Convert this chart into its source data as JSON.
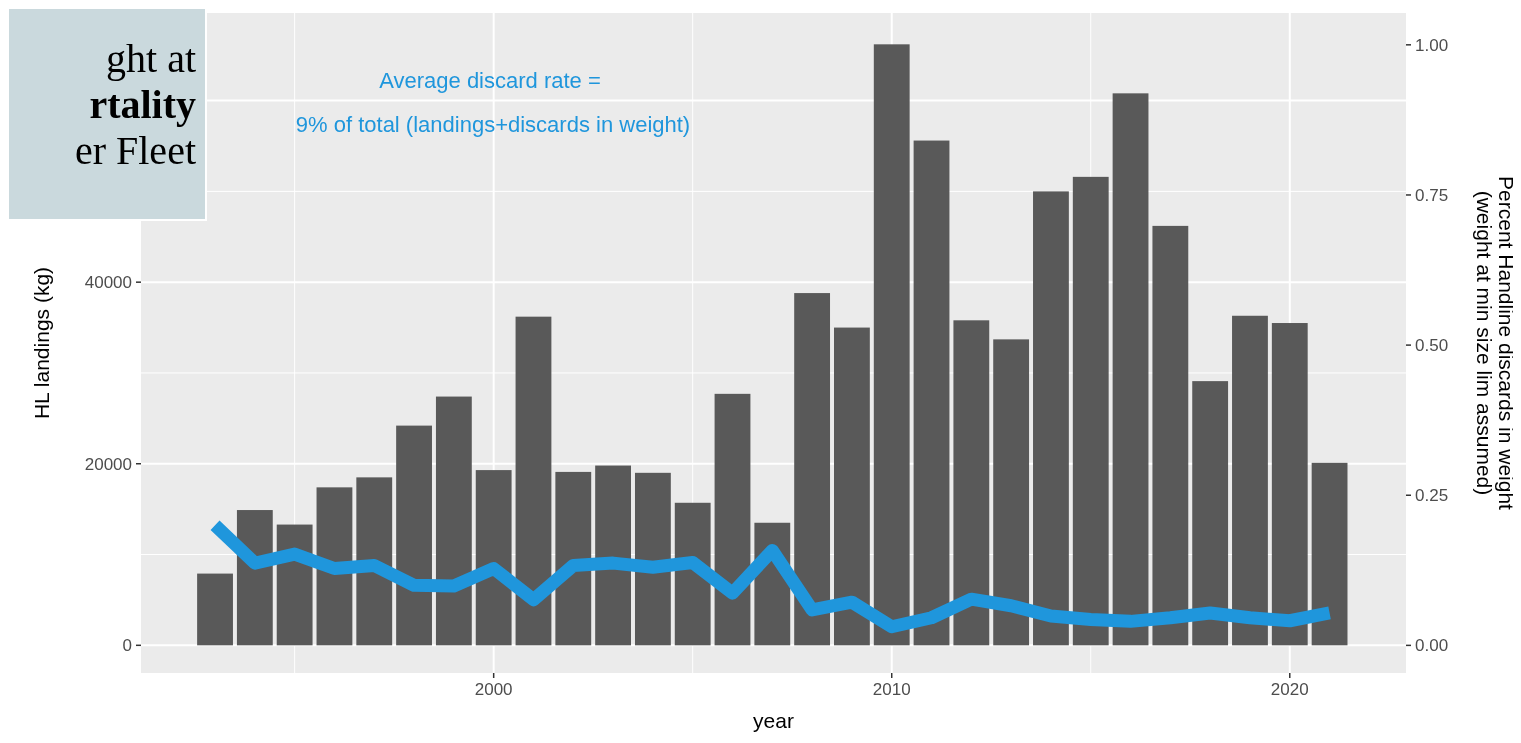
{
  "chart_data": {
    "type": "bar",
    "xlabel": "year",
    "ylabel": "HL landings (kg)",
    "y2label": "Percent Handline discards in weight\n(weight at min size lim assumed)",
    "x": [
      1993,
      1994,
      1995,
      1996,
      1997,
      1998,
      1999,
      2000,
      2001,
      2002,
      2003,
      2004,
      2005,
      2006,
      2007,
      2008,
      2009,
      2010,
      2011,
      2012,
      2013,
      2014,
      2015,
      2016,
      2017,
      2018,
      2019,
      2020,
      2021
    ],
    "series": [
      {
        "color": "#595959",
        "values": [
          7900,
          14900,
          13300,
          17400,
          18500,
          24200,
          27400,
          19300,
          36200,
          19100,
          19800,
          19000,
          15700,
          27700,
          13500,
          38800,
          35000,
          66200,
          55600,
          35800,
          33700,
          50000,
          51600,
          60800,
          46200,
          29100,
          36300,
          35500,
          20100
        ]
      },
      {
        "type": "line",
        "axis": "y2",
        "color": "#1f96dc",
        "values": [
          0.2,
          0.137,
          0.152,
          0.128,
          0.133,
          0.1,
          0.099,
          0.128,
          0.076,
          0.133,
          0.137,
          0.13,
          0.138,
          0.087,
          0.158,
          0.059,
          0.072,
          0.031,
          0.046,
          0.077,
          0.066,
          0.049,
          0.043,
          0.04,
          0.046,
          0.054,
          0.046,
          0.041,
          0.054
        ]
      }
    ],
    "xlim": [
      1991.14,
      2022.92
    ],
    "xticks": [
      2000,
      2010,
      2020
    ],
    "ylim": [
      -3050,
      69650
    ],
    "yticks": [
      0,
      20000,
      40000,
      {
        "value": 60000,
        "label": null
      }
    ],
    "y2lim": [
      -0.046,
      1.053
    ],
    "y2ticks": [
      {
        "value": 0,
        "label": "0.00"
      },
      {
        "value": 0.25,
        "label": "0.25"
      },
      {
        "value": 0.5,
        "label": "0.50"
      },
      {
        "value": 0.75,
        "label": "0.75"
      },
      {
        "value": 1,
        "label": "1.00"
      }
    ],
    "grid": true,
    "annotations": [
      "Average discard rate =",
      "9% of total (landings+discards in weight)",
      "ght at",
      "rtality",
      "er Fleet"
    ]
  }
}
